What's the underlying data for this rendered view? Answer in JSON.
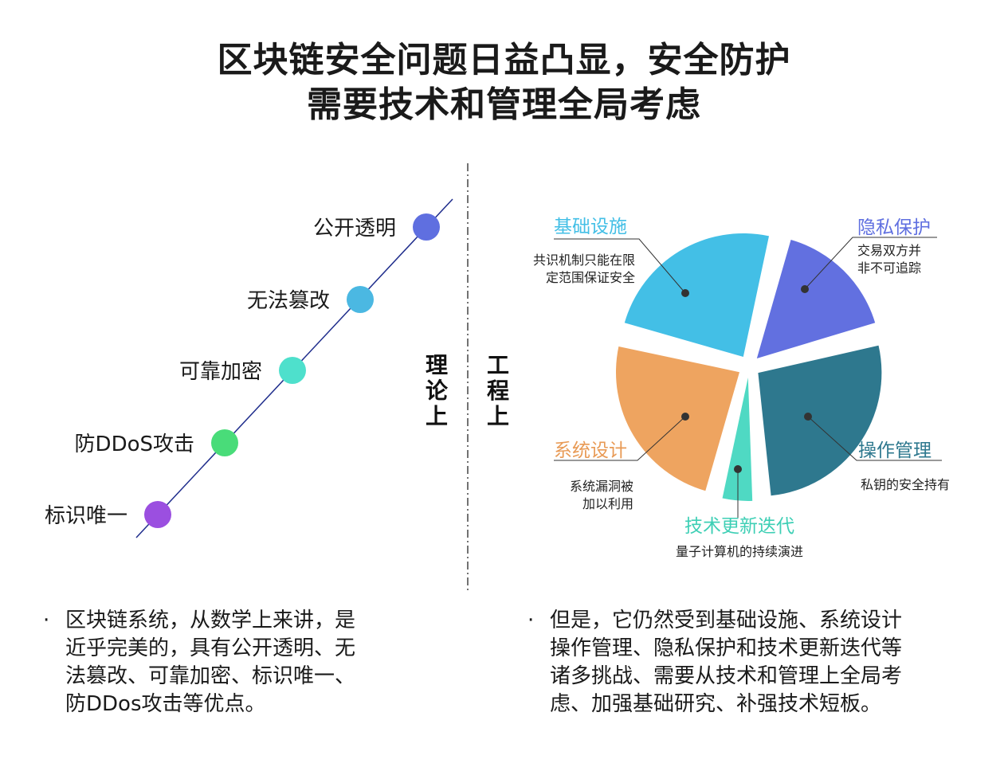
{
  "title": {
    "line1": "区块链安全问题日益凸显，安全防护",
    "line2": "需要技术和管理全局考虑"
  },
  "divider": {
    "left_label": "理论上",
    "right_label": "工程上"
  },
  "timeline": {
    "items": [
      {
        "label": "公开透明",
        "color": "#5f6fe0"
      },
      {
        "label": "无法篡改",
        "color": "#4bb8e2"
      },
      {
        "label": "可靠加密",
        "color": "#4ee0cc"
      },
      {
        "label": "防DDoS攻击",
        "color": "#49dc79"
      },
      {
        "label": "标识唯一",
        "color": "#9b4fe0"
      }
    ],
    "line_color": "#1f2d8c"
  },
  "chart_data": {
    "type": "pie",
    "slices": [
      {
        "name": "隐私保护",
        "value": 17,
        "color": "#6270e0",
        "desc": [
          "交易双方并",
          "非不可追踪"
        ],
        "label_color": "#5f6fe0"
      },
      {
        "name": "操作管理",
        "value": 28,
        "color": "#2e788e",
        "desc": [
          "私钥的安全持有"
        ],
        "label_color": "#2e788e"
      },
      {
        "name": "技术更新迭代",
        "value": 5,
        "color": "#4fd9c3",
        "desc": [
          "量子计算机的持续演进"
        ],
        "label_color": "#3ecfb5"
      },
      {
        "name": "系统设计",
        "value": 25,
        "color": "#eea460",
        "desc": [
          "系统漏洞被",
          "加以利用"
        ],
        "label_color": "#e89a55"
      },
      {
        "name": "基础设施",
        "value": 25,
        "color": "#43bfe6",
        "desc": [
          "共识机制只能在限",
          "定范围保证安全"
        ],
        "label_color": "#43bfe6"
      }
    ]
  },
  "bullets": {
    "dot": "·",
    "left": [
      "区块链系统，从数学上来讲，是",
      "近乎完美的，具有公开透明、无",
      "法篡改、可靠加密、标识唯一、",
      "防DDos攻击等优点。"
    ],
    "right": [
      "但是，它仍然受到基础设施、系统设计",
      "操作管理、隐私保护和技术更新迭代等",
      "诸多挑战、需要从技术和管理上全局考",
      "虑、加强基础研究、补强技术短板。"
    ]
  }
}
